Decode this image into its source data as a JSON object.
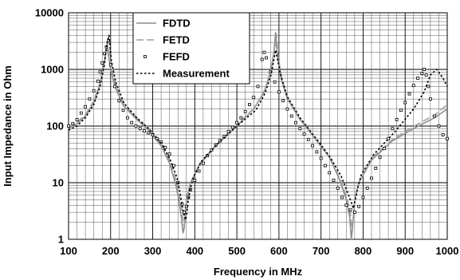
{
  "chart_data": {
    "type": "line",
    "xlabel": "Frequency in MHz",
    "ylabel": "Input Impedance in Ohm",
    "xlim": [
      100,
      1000
    ],
    "ylim": [
      1,
      10000
    ],
    "yscale": "log",
    "grid": true,
    "legend_position": "top-center",
    "x_ticks": [
      "100",
      "200",
      "300",
      "400",
      "500",
      "600",
      "700",
      "800",
      "900",
      "1000"
    ],
    "y_ticks": [
      "1",
      "10",
      "100",
      "1000",
      "10000"
    ],
    "series": [
      {
        "name": "FDTD",
        "style": "solid",
        "color": "#8c8c8c",
        "x": [
          100,
          120,
          140,
          160,
          175,
          185,
          190,
          195,
          200,
          210,
          230,
          260,
          290,
          320,
          340,
          355,
          362,
          368,
          372,
          375,
          378,
          382,
          390,
          410,
          450,
          500,
          540,
          565,
          580,
          588,
          592,
          596,
          605,
          620,
          650,
          690,
          720,
          745,
          760,
          768,
          772,
          776,
          780,
          790,
          820,
          870,
          920,
          970,
          1000
        ],
        "y": [
          90,
          110,
          150,
          260,
          550,
          1300,
          2500,
          1800,
          1000,
          500,
          230,
          135,
          85,
          45,
          22,
          9,
          5,
          2.5,
          1.3,
          1.6,
          3.5,
          6,
          10,
          20,
          45,
          100,
          200,
          400,
          900,
          2000,
          4500,
          1800,
          700,
          300,
          130,
          55,
          28,
          11,
          5,
          2.5,
          1,
          2,
          5,
          10,
          25,
          55,
          90,
          140,
          200
        ]
      },
      {
        "name": "FETD",
        "style": "dashed",
        "color": "#a0a0a0",
        "x": [
          100,
          120,
          140,
          160,
          175,
          185,
          192,
          197,
          203,
          212,
          232,
          262,
          292,
          322,
          342,
          357,
          364,
          370,
          374,
          377,
          380,
          384,
          392,
          412,
          452,
          500,
          542,
          566,
          582,
          590,
          594,
          598,
          607,
          622,
          652,
          692,
          722,
          747,
          761,
          769,
          773,
          777,
          781,
          792,
          822,
          872,
          922,
          972,
          1000
        ],
        "y": [
          95,
          115,
          160,
          280,
          600,
          1500,
          3000,
          2000,
          1100,
          520,
          240,
          140,
          88,
          47,
          23,
          10,
          5.5,
          3,
          1.8,
          2,
          4,
          6.5,
          11,
          22,
          48,
          105,
          210,
          430,
          1000,
          2300,
          4200,
          1700,
          680,
          290,
          125,
          52,
          27,
          11,
          5.5,
          3.2,
          1.6,
          2.5,
          5.5,
          11,
          28,
          60,
          100,
          160,
          240
        ]
      },
      {
        "name": "FEFD",
        "style": "markers",
        "color": "#000000",
        "x": [
          100,
          110,
          120,
          130,
          140,
          150,
          160,
          170,
          175,
          180,
          185,
          190,
          195,
          200,
          210,
          220,
          230,
          240,
          250,
          260,
          270,
          280,
          290,
          300,
          310,
          320,
          330,
          340,
          350,
          360,
          370,
          375,
          380,
          385,
          390,
          400,
          410,
          420,
          430,
          440,
          450,
          460,
          470,
          480,
          490,
          500,
          510,
          520,
          530,
          540,
          550,
          560,
          565,
          570,
          580,
          590,
          600,
          610,
          620,
          630,
          640,
          650,
          660,
          670,
          680,
          690,
          700,
          710,
          720,
          730,
          740,
          750,
          760,
          770,
          780,
          790,
          800,
          810,
          820,
          830,
          840,
          850,
          860,
          870,
          880,
          890,
          900,
          910,
          920,
          930,
          940,
          945,
          950,
          955,
          960,
          970,
          980,
          990,
          1000
        ],
        "y": [
          100,
          110,
          130,
          170,
          220,
          300,
          420,
          620,
          900,
          1300,
          1900,
          2500,
          3200,
          1200,
          500,
          280,
          190,
          140,
          115,
          100,
          90,
          82,
          76,
          70,
          60,
          52,
          42,
          32,
          20,
          10,
          4.2,
          3,
          3.8,
          5.5,
          7.5,
          11,
          16,
          22,
          30,
          38,
          46,
          55,
          65,
          80,
          95,
          115,
          140,
          180,
          240,
          320,
          500,
          1500,
          2000,
          1600,
          900,
          600,
          400,
          280,
          200,
          150,
          115,
          90,
          72,
          58,
          45,
          35,
          27,
          20,
          15,
          11,
          8,
          5.5,
          4,
          3.3,
          3,
          3.8,
          5.5,
          8,
          12,
          18,
          28,
          40,
          60,
          90,
          130,
          190,
          260,
          370,
          520,
          700,
          850,
          1000,
          800,
          500,
          300,
          150,
          100,
          70,
          60
        ]
      },
      {
        "name": "Measurement",
        "style": "dotted",
        "color": "#000000",
        "x": [
          100,
          120,
          140,
          160,
          175,
          185,
          191,
          196,
          202,
          212,
          232,
          262,
          292,
          322,
          342,
          358,
          366,
          372,
          378,
          381,
          384,
          388,
          396,
          416,
          456,
          500,
          545,
          567,
          581,
          588,
          592,
          596,
          604,
          620,
          650,
          690,
          722,
          748,
          764,
          772,
          777,
          781,
          786,
          796,
          826,
          876,
          920,
          945,
          960,
          975,
          990,
          1000
        ],
        "y": [
          85,
          100,
          140,
          240,
          500,
          1200,
          2800,
          4000,
          1400,
          600,
          250,
          140,
          88,
          48,
          25,
          12,
          6,
          3.2,
          2.2,
          2.8,
          4.5,
          7,
          12,
          24,
          50,
          100,
          190,
          380,
          800,
          1500,
          2200,
          1600,
          800,
          330,
          140,
          58,
          28,
          13,
          6.5,
          4.5,
          3.5,
          4.8,
          7.5,
          14,
          32,
          80,
          200,
          400,
          800,
          1000,
          700,
          500
        ]
      }
    ]
  }
}
